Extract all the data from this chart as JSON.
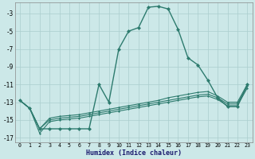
{
  "xlabel": "Humidex (Indice chaleur)",
  "bg_color": "#cce8e8",
  "grid_color": "#aacece",
  "line_color": "#2d7b6e",
  "xlim": [
    -0.5,
    23.5
  ],
  "ylim": [
    -17.5,
    -1.8
  ],
  "yticks": [
    -3,
    -5,
    -7,
    -9,
    -11,
    -13,
    -15,
    -17
  ],
  "xticks": [
    0,
    1,
    2,
    3,
    4,
    5,
    6,
    7,
    8,
    9,
    10,
    11,
    12,
    13,
    14,
    15,
    16,
    17,
    18,
    19,
    20,
    21,
    22,
    23
  ],
  "main_x": [
    0,
    1,
    2,
    3,
    4,
    5,
    6,
    7,
    8,
    9,
    10,
    11,
    12,
    13,
    14,
    15,
    16,
    17,
    18,
    19,
    20,
    21,
    22,
    23
  ],
  "main_y": [
    -12.8,
    -13.7,
    -16.0,
    -16.0,
    -16.0,
    -16.0,
    -16.0,
    -16.0,
    -11.0,
    -13.0,
    -7.0,
    -5.0,
    -4.6,
    -2.3,
    -2.2,
    -2.5,
    -4.8,
    -8.0,
    -8.8,
    -10.5,
    -12.5,
    -13.5,
    -13.5,
    -11.0
  ],
  "flat1_x": [
    0,
    1,
    2,
    3,
    4,
    5,
    6,
    7,
    8,
    9,
    10,
    11,
    12,
    13,
    14,
    15,
    16,
    17,
    18,
    19,
    20,
    21,
    22,
    23
  ],
  "flat1_y": [
    -12.8,
    -13.7,
    -16.0,
    -14.8,
    -14.6,
    -14.5,
    -14.4,
    -14.2,
    -14.0,
    -13.8,
    -13.6,
    -13.4,
    -13.2,
    -13.0,
    -12.8,
    -12.5,
    -12.3,
    -12.1,
    -11.9,
    -11.8,
    -12.3,
    -13.0,
    -13.0,
    -11.0
  ],
  "flat2_x": [
    0,
    1,
    2,
    3,
    4,
    5,
    6,
    7,
    8,
    9,
    10,
    11,
    12,
    13,
    14,
    15,
    16,
    17,
    18,
    19,
    20,
    21,
    22,
    23
  ],
  "flat2_y": [
    -12.8,
    -13.7,
    -16.0,
    -15.0,
    -14.8,
    -14.7,
    -14.6,
    -14.4,
    -14.2,
    -14.0,
    -13.8,
    -13.6,
    -13.4,
    -13.2,
    -13.0,
    -12.8,
    -12.6,
    -12.4,
    -12.2,
    -12.1,
    -12.5,
    -13.2,
    -13.2,
    -11.2
  ],
  "flat3_x": [
    0,
    1,
    2,
    3,
    4,
    5,
    6,
    7,
    8,
    9,
    10,
    11,
    12,
    13,
    14,
    15,
    16,
    17,
    18,
    19,
    20,
    21,
    22,
    23
  ],
  "flat3_y": [
    -12.8,
    -13.7,
    -16.5,
    -15.2,
    -15.0,
    -14.9,
    -14.8,
    -14.6,
    -14.4,
    -14.2,
    -14.0,
    -13.8,
    -13.6,
    -13.4,
    -13.2,
    -13.0,
    -12.8,
    -12.6,
    -12.4,
    -12.3,
    -12.7,
    -13.4,
    -13.4,
    -11.4
  ]
}
